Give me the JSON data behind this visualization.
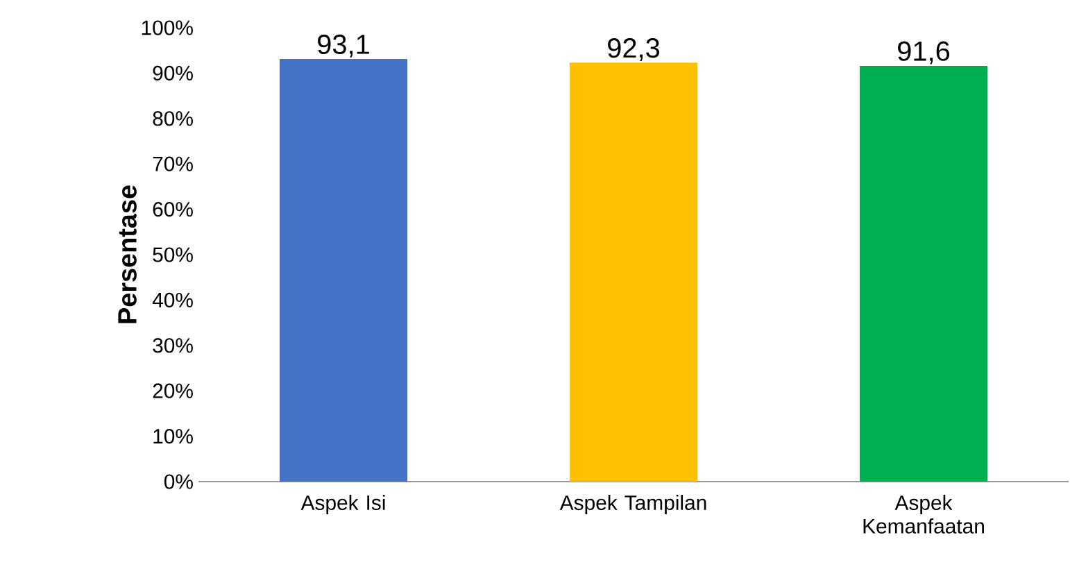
{
  "chart_data": {
    "type": "bar",
    "ylabel": "Persentase",
    "categories": [
      "Aspek Isi",
      "Aspek Tampilan",
      "Aspek Kemanfaatan"
    ],
    "values": [
      93.1,
      92.3,
      91.6
    ],
    "colors": [
      "#4472c4",
      "#ffc000",
      "#00b050"
    ],
    "value_labels": [
      "93,1",
      "92,3",
      "91,6"
    ],
    "ylim": [
      0,
      100
    ],
    "yticks": [
      {
        "value": 0,
        "label": "0%"
      },
      {
        "value": 10,
        "label": "10%"
      },
      {
        "value": 20,
        "label": "20%"
      },
      {
        "value": 30,
        "label": "30%"
      },
      {
        "value": 40,
        "label": "40%"
      },
      {
        "value": 50,
        "label": "50%"
      },
      {
        "value": 60,
        "label": "60%"
      },
      {
        "value": 70,
        "label": "70%"
      },
      {
        "value": 80,
        "label": "80%"
      },
      {
        "value": 90,
        "label": "90%"
      },
      {
        "value": 100,
        "label": "100%"
      }
    ],
    "line_style": "solid"
  }
}
